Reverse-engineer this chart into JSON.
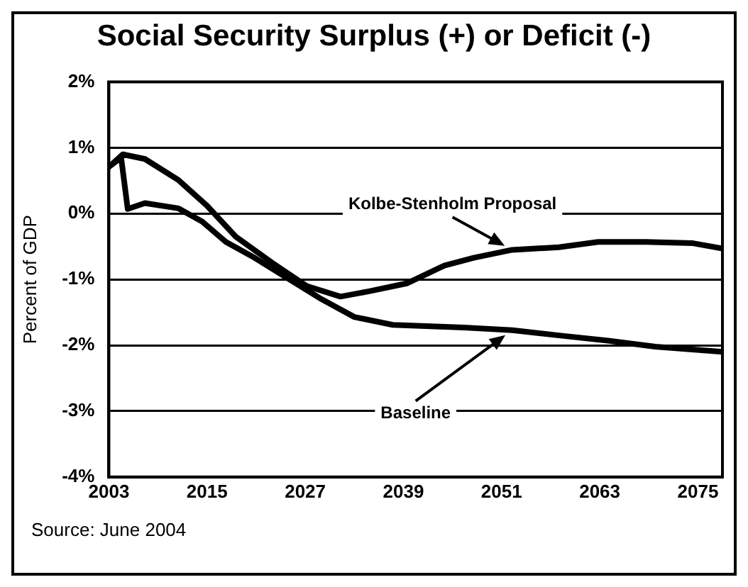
{
  "chart_data": {
    "type": "line",
    "title": "Social Security Surplus (+) or Deficit (-)",
    "ylabel": "Percent of GDP",
    "annotations": [
      "Source:  June 2004"
    ],
    "xlim": [
      2003,
      2078
    ],
    "xticks": [
      2003,
      2015,
      2027,
      2039,
      2051,
      2063,
      2075
    ],
    "ylim": [
      -4,
      2
    ],
    "yticks": [
      {
        "value": -4,
        "label": "-4%"
      },
      {
        "value": -3,
        "label": "-3%"
      },
      {
        "value": -2,
        "label": "-2%"
      },
      {
        "value": -1,
        "label": "-1%"
      },
      {
        "value": 0,
        "label": "0%"
      },
      {
        "value": 1,
        "label": "1%"
      },
      {
        "value": 2,
        "label": "2%"
      }
    ],
    "grid": "y",
    "legend": false,
    "marker": "none",
    "line_style": "solid",
    "series": [
      {
        "name": "Kolbe-Stenholm Proposal",
        "color": "#000000",
        "x": [
          2003,
          2004.7,
          2007.4,
          2011.5,
          2015,
          2018.5,
          2023,
          2027.2,
          2031.3,
          2034.8,
          2039.4,
          2044,
          2047.6,
          2052.3,
          2058,
          2062.8,
          2068.6,
          2074.4,
          2078
        ],
        "values": [
          0.71,
          0.9,
          0.83,
          0.51,
          0.12,
          -0.35,
          -0.75,
          -1.1,
          -1.26,
          -1.18,
          -1.06,
          -0.79,
          -0.67,
          -0.55,
          -0.51,
          -0.43,
          -0.43,
          -0.45,
          -0.53
        ]
      },
      {
        "name": "Baseline",
        "color": "#000000",
        "x": [
          2003,
          2004.5,
          2005.3,
          2007.4,
          2011.5,
          2014.4,
          2017.3,
          2020.8,
          2024.3,
          2029,
          2033,
          2037.7,
          2046.4,
          2052.3,
          2058,
          2064,
          2069.8,
          2078
        ],
        "values": [
          0.71,
          0.85,
          0.07,
          0.16,
          0.08,
          -0.12,
          -0.43,
          -0.67,
          -0.94,
          -1.3,
          -1.57,
          -1.69,
          -1.73,
          -1.77,
          -1.85,
          -1.93,
          -2.02,
          -2.1
        ]
      }
    ]
  }
}
